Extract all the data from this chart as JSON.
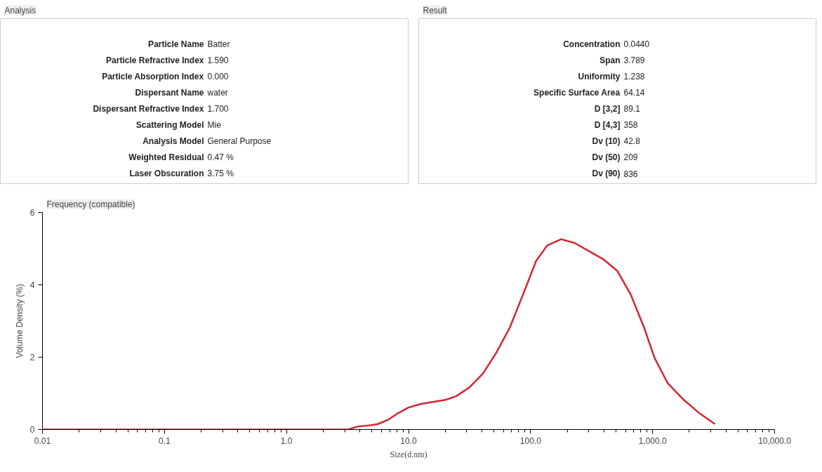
{
  "chart_data": [
    {
      "type": "other",
      "title": "Analysis",
      "categories": [
        "Particle Name",
        "Particle Refractive Index",
        "Particle Absorption Index",
        "Dispersant Name",
        "Dispersant Refractive Index",
        "Scattering Model",
        "Analysis Model",
        "Weighted Residual",
        "Laser Obscuration"
      ],
      "value_labels": [
        "Batter",
        "1.590",
        "0.000",
        "water",
        "1.700",
        "Mie",
        "General Purpose",
        "0.47 %",
        "3.75 %"
      ]
    },
    {
      "type": "other",
      "title": "Result",
      "categories": [
        "Concentration",
        "Span",
        "Uniformity",
        "Specific Surface Area",
        "D [3,2]",
        "D [4,3]",
        "Dv (10)",
        "Dv (50)",
        "Dv (90)"
      ],
      "value_labels": [
        "0.0440",
        "3.789",
        "1.238",
        "64.14",
        "89.1",
        "358",
        "42.8",
        "209",
        "836"
      ]
    },
    {
      "type": "line",
      "title": "Frequency (compatible)",
      "xlabel": "Size(d.nm)",
      "ylabel": "Volume Density (%)",
      "log": "x",
      "grid": false,
      "marker": "none",
      "line_style": "solid",
      "xlim": [
        0.01,
        10000
      ],
      "xticks": [
        {
          "value": 0.01,
          "label": "0.01"
        },
        {
          "value": 0.1,
          "label": "0.1"
        },
        {
          "value": 1,
          "label": "1.0"
        },
        {
          "value": 10,
          "label": "10.0"
        },
        {
          "value": 100,
          "label": "100.0"
        },
        {
          "value": 1000,
          "label": "1,000.0"
        },
        {
          "value": 10000,
          "label": "10,000.0"
        }
      ],
      "ylim": [
        0,
        6
      ],
      "yticks": [
        0,
        2,
        4,
        6
      ],
      "x": [
        0.01,
        0.1,
        1,
        3.2,
        3.8,
        5.0,
        5.6,
        6.9,
        8.1,
        10,
        12.7,
        20.1,
        24.6,
        31.7,
        40.8,
        52.5,
        67.6,
        86.9,
        111,
        137,
        178,
        228,
        309,
        397,
        512,
        660,
        851,
        1040,
        1330,
        1800,
        2440,
        3240
      ],
      "series": [
        {
          "color": "#d62433",
          "values": [
            0,
            0,
            0,
            0,
            0.08,
            0.12,
            0.15,
            0.28,
            0.44,
            0.61,
            0.71,
            0.82,
            0.92,
            1.17,
            1.55,
            2.13,
            2.82,
            3.74,
            4.66,
            5.09,
            5.26,
            5.16,
            4.91,
            4.7,
            4.39,
            3.74,
            2.82,
            1.97,
            1.28,
            0.82,
            0.44,
            0.15
          ]
        }
      ]
    }
  ]
}
